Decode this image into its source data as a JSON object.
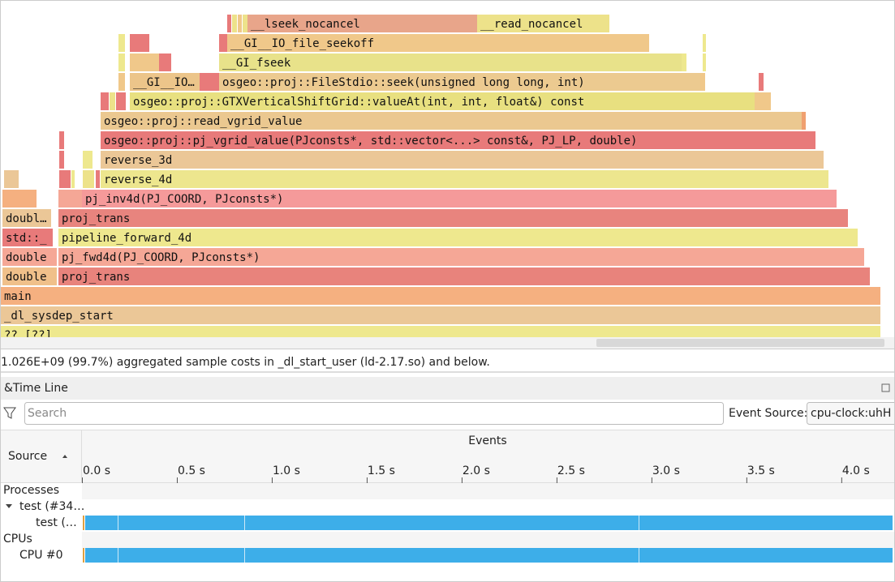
{
  "flamegraph": {
    "frames": [
      "__lseek_nocancel",
      "__read_nocancel",
      "__GI__IO_file_seekoff",
      "__GI_fseek",
      "__GI__IO…",
      "osgeo::proj::FileStdio::seek(unsigned long long, int)",
      "osgeo::proj::GTXVerticalShiftGrid::valueAt(int, int, float&) const",
      "osgeo::proj::read_vgrid_value",
      "osgeo::proj::pj_vgrid_value(PJconsts*, std::vector<...> const&, PJ_LP, double)",
      "reverse_3d",
      "reverse_4d",
      "pj_inv4d(PJ_COORD, PJconsts*)",
      "doubl…",
      "proj_trans",
      "std::_",
      "pipeline_forward_4d",
      "double",
      "pj_fwd4d(PJ_COORD, PJconsts*)",
      "double",
      "proj_trans",
      "main",
      "_dl_sysdep_start",
      "?? [??]"
    ]
  },
  "status": "1.026E+09 (99.7%) aggregated sample costs in _dl_start_user (ld-2.17.so) and below.",
  "timeline": {
    "title": "&Time Line",
    "search_placeholder": "Search",
    "event_source_label": "Event Source:",
    "event_source": "cpu-clock:uhH",
    "columns": {
      "source": "Source",
      "events": "Events"
    },
    "xlim": [
      0,
      4.27
    ],
    "ticks": [
      {
        "value": 0,
        "label": "0.0 s"
      },
      {
        "value": 0.5,
        "label": "0.5 s"
      },
      {
        "value": 1,
        "label": "1.0 s"
      },
      {
        "value": 1.5,
        "label": "1.5 s"
      },
      {
        "value": 2,
        "label": "2.0 s"
      },
      {
        "value": 2.5,
        "label": "2.5 s"
      },
      {
        "value": 3,
        "label": "3.0 s"
      },
      {
        "value": 3.5,
        "label": "3.5 s"
      },
      {
        "value": 4,
        "label": "4.0 s"
      }
    ],
    "rows": [
      "Processes",
      "test (#34…",
      "test (…",
      "CPUs",
      "CPU #0"
    ]
  }
}
